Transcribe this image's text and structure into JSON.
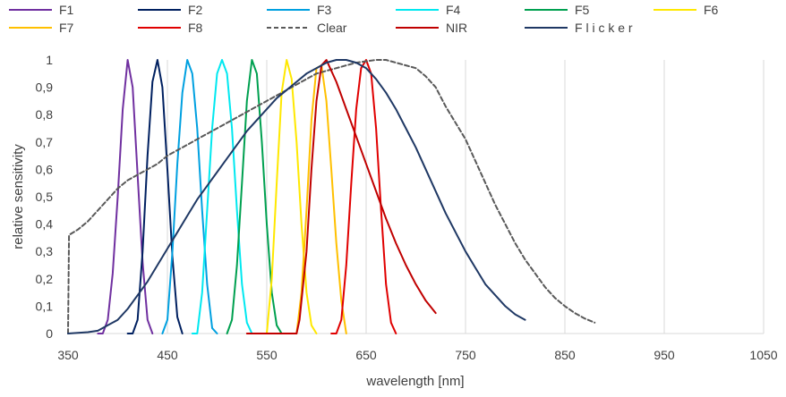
{
  "chart_data": {
    "type": "line",
    "xlabel": "wavelength [nm]",
    "ylabel": "relative sensitivity",
    "xlim": [
      350,
      1050
    ],
    "ylim": [
      0,
      1
    ],
    "x_ticks": [
      "350",
      "450",
      "550",
      "650",
      "750",
      "850",
      "950",
      "1050"
    ],
    "y_ticks": [
      "0",
      "0,1",
      "0,2",
      "0,3",
      "0,4",
      "0,5",
      "0,6",
      "0,7",
      "0,8",
      "0,9",
      "1"
    ],
    "grid": "vertical",
    "legend_position": "top",
    "series": [
      {
        "name": "F1",
        "color": "#7030A0",
        "dash": false,
        "points": [
          [
            380,
            0
          ],
          [
            385,
            0
          ],
          [
            390,
            0.05
          ],
          [
            395,
            0.22
          ],
          [
            400,
            0.5
          ],
          [
            405,
            0.82
          ],
          [
            410,
            1.0
          ],
          [
            415,
            0.9
          ],
          [
            420,
            0.58
          ],
          [
            425,
            0.26
          ],
          [
            430,
            0.05
          ],
          [
            435,
            0
          ]
        ]
      },
      {
        "name": "F2",
        "color": "#002060",
        "dash": false,
        "points": [
          [
            410,
            0
          ],
          [
            415,
            0
          ],
          [
            420,
            0.05
          ],
          [
            425,
            0.3
          ],
          [
            430,
            0.65
          ],
          [
            435,
            0.92
          ],
          [
            440,
            1.0
          ],
          [
            445,
            0.9
          ],
          [
            450,
            0.6
          ],
          [
            455,
            0.28
          ],
          [
            460,
            0.06
          ],
          [
            465,
            0
          ]
        ]
      },
      {
        "name": "F3",
        "color": "#00A0E0",
        "dash": false,
        "points": [
          [
            445,
            0
          ],
          [
            450,
            0.05
          ],
          [
            455,
            0.3
          ],
          [
            460,
            0.62
          ],
          [
            465,
            0.88
          ],
          [
            470,
            1.0
          ],
          [
            475,
            0.95
          ],
          [
            480,
            0.75
          ],
          [
            485,
            0.45
          ],
          [
            490,
            0.18
          ],
          [
            495,
            0.02
          ],
          [
            500,
            0
          ]
        ]
      },
      {
        "name": "F4",
        "color": "#00E8F0",
        "dash": false,
        "points": [
          [
            475,
            0
          ],
          [
            480,
            0
          ],
          [
            485,
            0.15
          ],
          [
            490,
            0.45
          ],
          [
            495,
            0.75
          ],
          [
            500,
            0.95
          ],
          [
            505,
            1.0
          ],
          [
            510,
            0.95
          ],
          [
            515,
            0.75
          ],
          [
            520,
            0.45
          ],
          [
            525,
            0.18
          ],
          [
            530,
            0.04
          ],
          [
            535,
            0
          ]
        ]
      },
      {
        "name": "F5",
        "color": "#00A050",
        "dash": false,
        "points": [
          [
            510,
            0
          ],
          [
            515,
            0.05
          ],
          [
            520,
            0.25
          ],
          [
            525,
            0.55
          ],
          [
            530,
            0.85
          ],
          [
            535,
            1.0
          ],
          [
            540,
            0.95
          ],
          [
            545,
            0.7
          ],
          [
            550,
            0.4
          ],
          [
            555,
            0.15
          ],
          [
            560,
            0.03
          ],
          [
            565,
            0
          ]
        ]
      },
      {
        "name": "F6",
        "color": "#FFE800",
        "dash": false,
        "points": [
          [
            545,
            0
          ],
          [
            550,
            0
          ],
          [
            555,
            0.2
          ],
          [
            560,
            0.55
          ],
          [
            565,
            0.88
          ],
          [
            570,
            1.0
          ],
          [
            575,
            0.93
          ],
          [
            580,
            0.7
          ],
          [
            585,
            0.4
          ],
          [
            590,
            0.15
          ],
          [
            595,
            0.03
          ],
          [
            600,
            0
          ]
        ]
      },
      {
        "name": "F7",
        "color": "#FFC000",
        "dash": false,
        "points": [
          [
            575,
            0
          ],
          [
            580,
            0
          ],
          [
            585,
            0.15
          ],
          [
            590,
            0.45
          ],
          [
            595,
            0.78
          ],
          [
            600,
            0.97
          ],
          [
            605,
            0.98
          ],
          [
            610,
            0.85
          ],
          [
            615,
            0.6
          ],
          [
            620,
            0.33
          ],
          [
            625,
            0.12
          ],
          [
            630,
            0
          ]
        ]
      },
      {
        "name": "F8",
        "color": "#E00000",
        "dash": false,
        "points": [
          [
            615,
            0
          ],
          [
            620,
            0
          ],
          [
            625,
            0.05
          ],
          [
            630,
            0.25
          ],
          [
            635,
            0.55
          ],
          [
            640,
            0.82
          ],
          [
            645,
            0.97
          ],
          [
            650,
            1.0
          ],
          [
            655,
            0.95
          ],
          [
            660,
            0.75
          ],
          [
            665,
            0.45
          ],
          [
            670,
            0.18
          ],
          [
            675,
            0.04
          ],
          [
            680,
            0
          ]
        ]
      },
      {
        "name": "Clear",
        "color": "#595959",
        "dash": true,
        "points": [
          [
            350,
            0
          ],
          [
            351,
            0.36
          ],
          [
            360,
            0.38
          ],
          [
            370,
            0.41
          ],
          [
            380,
            0.45
          ],
          [
            390,
            0.49
          ],
          [
            400,
            0.53
          ],
          [
            410,
            0.56
          ],
          [
            420,
            0.58
          ],
          [
            430,
            0.6
          ],
          [
            440,
            0.62
          ],
          [
            450,
            0.65
          ],
          [
            460,
            0.67
          ],
          [
            470,
            0.69
          ],
          [
            480,
            0.71
          ],
          [
            490,
            0.73
          ],
          [
            500,
            0.75
          ],
          [
            510,
            0.77
          ],
          [
            520,
            0.79
          ],
          [
            530,
            0.81
          ],
          [
            540,
            0.83
          ],
          [
            550,
            0.85
          ],
          [
            560,
            0.87
          ],
          [
            570,
            0.89
          ],
          [
            580,
            0.91
          ],
          [
            590,
            0.93
          ],
          [
            600,
            0.95
          ],
          [
            610,
            0.96
          ],
          [
            620,
            0.97
          ],
          [
            630,
            0.98
          ],
          [
            640,
            0.99
          ],
          [
            650,
            0.995
          ],
          [
            660,
            1.0
          ],
          [
            670,
            1.0
          ],
          [
            680,
            0.99
          ],
          [
            690,
            0.98
          ],
          [
            700,
            0.97
          ],
          [
            710,
            0.94
          ],
          [
            720,
            0.9
          ],
          [
            730,
            0.83
          ],
          [
            740,
            0.77
          ],
          [
            750,
            0.71
          ],
          [
            760,
            0.63
          ],
          [
            770,
            0.55
          ],
          [
            780,
            0.47
          ],
          [
            790,
            0.4
          ],
          [
            800,
            0.33
          ],
          [
            810,
            0.27
          ],
          [
            820,
            0.22
          ],
          [
            830,
            0.17
          ],
          [
            840,
            0.13
          ],
          [
            850,
            0.1
          ],
          [
            860,
            0.075
          ],
          [
            870,
            0.055
          ],
          [
            880,
            0.04
          ]
        ]
      },
      {
        "name": "NIR",
        "color": "#C00000",
        "dash": false,
        "points": [
          [
            530,
            0
          ],
          [
            580,
            0
          ],
          [
            583,
            0.05
          ],
          [
            590,
            0.3
          ],
          [
            595,
            0.6
          ],
          [
            600,
            0.85
          ],
          [
            605,
            0.98
          ],
          [
            610,
            1.0
          ],
          [
            620,
            0.92
          ],
          [
            630,
            0.82
          ],
          [
            640,
            0.72
          ],
          [
            650,
            0.62
          ],
          [
            660,
            0.52
          ],
          [
            670,
            0.42
          ],
          [
            680,
            0.33
          ],
          [
            690,
            0.25
          ],
          [
            700,
            0.18
          ],
          [
            710,
            0.12
          ],
          [
            720,
            0.075
          ]
        ]
      },
      {
        "name": "F l i c k e r",
        "color": "#1F3864",
        "dash": false,
        "points": [
          [
            350,
            0
          ],
          [
            370,
            0.005
          ],
          [
            380,
            0.01
          ],
          [
            390,
            0.03
          ],
          [
            400,
            0.05
          ],
          [
            410,
            0.09
          ],
          [
            420,
            0.14
          ],
          [
            430,
            0.19
          ],
          [
            440,
            0.25
          ],
          [
            450,
            0.31
          ],
          [
            460,
            0.37
          ],
          [
            470,
            0.43
          ],
          [
            480,
            0.49
          ],
          [
            490,
            0.54
          ],
          [
            500,
            0.59
          ],
          [
            510,
            0.64
          ],
          [
            520,
            0.69
          ],
          [
            530,
            0.74
          ],
          [
            540,
            0.78
          ],
          [
            550,
            0.82
          ],
          [
            560,
            0.86
          ],
          [
            570,
            0.89
          ],
          [
            580,
            0.92
          ],
          [
            590,
            0.95
          ],
          [
            600,
            0.97
          ],
          [
            610,
            0.99
          ],
          [
            620,
            1.0
          ],
          [
            630,
            1.0
          ],
          [
            640,
            0.99
          ],
          [
            650,
            0.97
          ],
          [
            660,
            0.93
          ],
          [
            670,
            0.88
          ],
          [
            680,
            0.82
          ],
          [
            690,
            0.75
          ],
          [
            700,
            0.68
          ],
          [
            710,
            0.6
          ],
          [
            720,
            0.52
          ],
          [
            730,
            0.44
          ],
          [
            740,
            0.37
          ],
          [
            750,
            0.3
          ],
          [
            760,
            0.24
          ],
          [
            770,
            0.18
          ],
          [
            780,
            0.14
          ],
          [
            790,
            0.1
          ],
          [
            800,
            0.07
          ],
          [
            810,
            0.05
          ]
        ]
      }
    ]
  }
}
